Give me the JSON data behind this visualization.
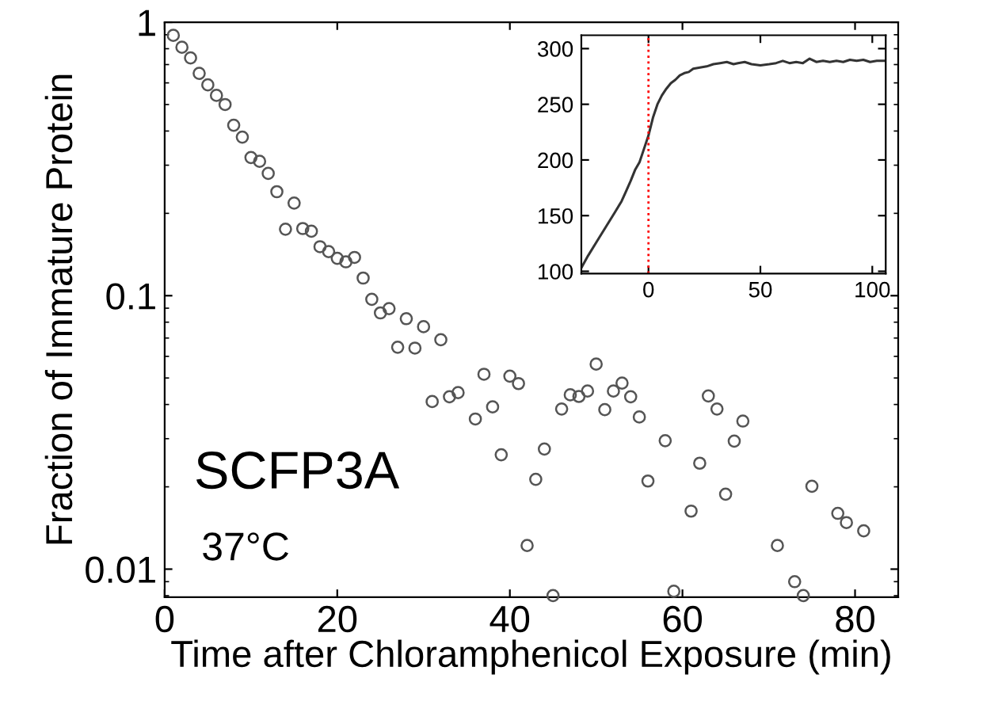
{
  "chart_data": [
    {
      "type": "scatter",
      "xlabel": "Time after Chloramphenicol Exposure (min)",
      "ylabel": "Fraction of Immature Protein",
      "annotations": [
        "SCFP3A",
        "37°C"
      ],
      "series": [
        {
          "color": "#555555",
          "x": [
            1,
            2,
            3,
            4,
            5,
            6,
            7,
            8,
            9,
            10,
            11,
            12,
            13,
            14,
            15,
            16,
            17,
            18,
            19,
            20,
            21,
            22,
            23,
            24,
            25,
            26,
            27,
            28,
            29,
            30,
            31,
            32,
            33,
            34,
            36,
            37,
            38,
            39,
            40,
            41,
            42,
            43,
            44,
            45,
            46,
            47,
            48,
            49,
            50,
            51,
            52,
            53,
            54,
            55,
            56,
            58,
            59,
            61,
            62,
            63,
            64,
            65,
            66,
            67,
            71,
            73,
            74,
            75,
            78,
            79,
            81
          ],
          "values": [
            0.895,
            0.81,
            0.74,
            0.65,
            0.59,
            0.54,
            0.5,
            0.42,
            0.38,
            0.32,
            0.31,
            0.28,
            0.24,
            0.175,
            0.218,
            0.176,
            0.172,
            0.151,
            0.145,
            0.137,
            0.133,
            0.138,
            0.116,
            0.097,
            0.0865,
            0.0897,
            0.0648,
            0.0824,
            0.0643,
            0.077,
            0.041,
            0.069,
            0.0427,
            0.0442,
            0.0354,
            0.0516,
            0.0392,
            0.0262,
            0.0508,
            0.0477,
            0.0122,
            0.0213,
            0.0275,
            0.008,
            0.0385,
            0.0434,
            0.0428,
            0.0448,
            0.0562,
            0.0383,
            0.0448,
            0.0479,
            0.0427,
            0.036,
            0.021,
            0.0295,
            0.0083,
            0.0163,
            0.0244,
            0.043,
            0.0385,
            0.0188,
            0.0294,
            0.0348,
            0.0122,
            0.009,
            0.008,
            0.0201,
            0.016,
            0.0148,
            0.0138
          ]
        }
      ],
      "marker": "circle",
      "log": "y",
      "grid": false,
      "xlim": [
        0,
        85
      ],
      "xticks": [
        0,
        20,
        40,
        60,
        80
      ],
      "ylim": [
        0.0079,
        1
      ],
      "yticks": [
        0.01,
        0.1,
        1
      ]
    },
    {
      "type": "line",
      "series": [
        {
          "color": "#333333",
          "x": [
            -30,
            -27,
            -23,
            -19,
            -15,
            -12,
            -10,
            -8,
            -6,
            -4,
            -2,
            0,
            2,
            4,
            6,
            8,
            10,
            12,
            14,
            16,
            18,
            20,
            23,
            26,
            29,
            32,
            35,
            38,
            40,
            43,
            46,
            50,
            54,
            57,
            60,
            63,
            66,
            69,
            72,
            75,
            78,
            81,
            84,
            87,
            90,
            93,
            96,
            99,
            102,
            105.4
          ],
          "values": [
            103,
            114,
            127,
            140,
            153,
            163,
            172,
            181,
            191,
            198,
            210,
            222,
            238,
            250,
            258,
            264,
            269,
            272,
            276,
            278,
            279,
            282,
            283,
            284,
            286,
            287,
            288,
            286,
            287,
            288,
            286,
            285,
            286,
            287,
            289,
            287,
            288,
            287,
            291,
            288,
            289,
            288,
            289,
            288,
            290,
            289,
            290,
            288,
            289,
            289
          ]
        }
      ],
      "ref_lines": [
        {
          "axis": "x",
          "value": 0,
          "color": "#ff0000",
          "line_style": "dotted"
        }
      ],
      "tick_labels": true,
      "grid": false,
      "line_style": "solid",
      "xlim": [
        -30,
        106
      ],
      "xticks": [
        0,
        50,
        100
      ],
      "ylim": [
        98,
        312
      ],
      "yticks": [
        100,
        150,
        200,
        250,
        300
      ]
    }
  ]
}
